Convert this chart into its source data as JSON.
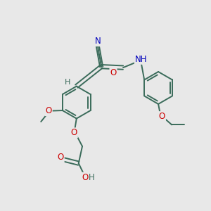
{
  "bg_color": "#e8e8e8",
  "bond_color": "#3a6b5a",
  "bond_width": 1.4,
  "atom_colors": {
    "N": "#0000bb",
    "O": "#cc0000",
    "H": "#3a6b5a",
    "C": "#3a6b5a"
  },
  "font_size": 8.5,
  "fig_size": [
    3.0,
    3.0
  ],
  "dpi": 100,
  "xlim": [
    0,
    10
  ],
  "ylim": [
    0,
    10
  ]
}
